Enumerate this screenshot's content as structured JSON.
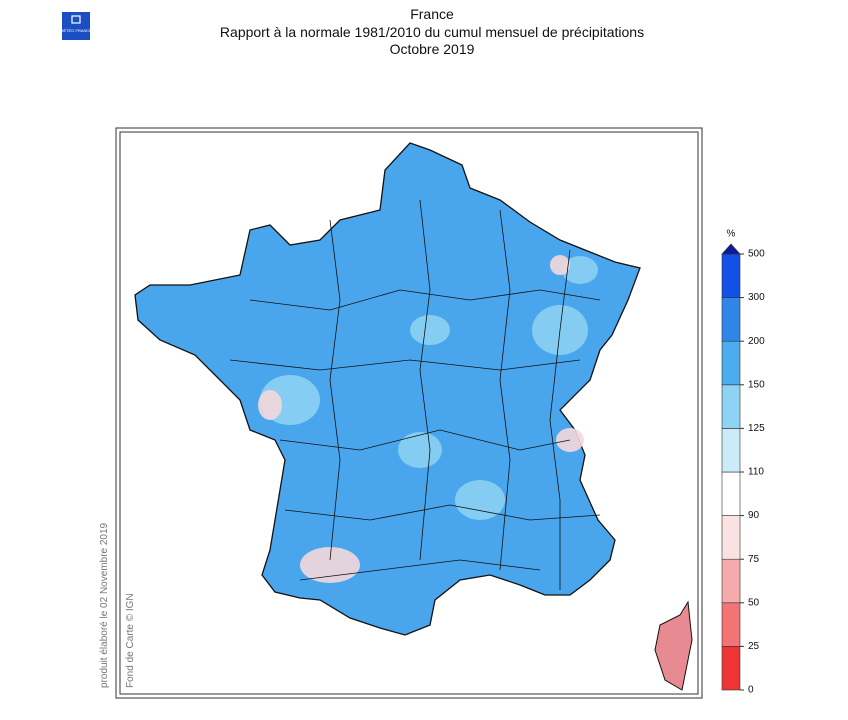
{
  "header": {
    "logo": "MÉTÉO FRANCE",
    "title_lines": [
      "France",
      "Rapport à la normale 1981/2010 du cumul mensuel de précipitations",
      "Octobre 2019"
    ]
  },
  "credits": {
    "produced": "produit élaboré le 02 Novembre 2019",
    "basemap": "Fond de Carte © IGN"
  },
  "legend": {
    "unit": "%",
    "ticks": [
      0,
      25,
      50,
      75,
      90,
      110,
      125,
      150,
      200,
      300,
      500
    ],
    "colors": [
      "#f03434",
      "#f27474",
      "#f5abab",
      "#fbe2e2",
      "#ffffff",
      "#c9ecf8",
      "#8fd3f4",
      "#4cadee",
      "#2f86e8",
      "#1250e6"
    ],
    "over_color": "#0c1c96"
  }
}
